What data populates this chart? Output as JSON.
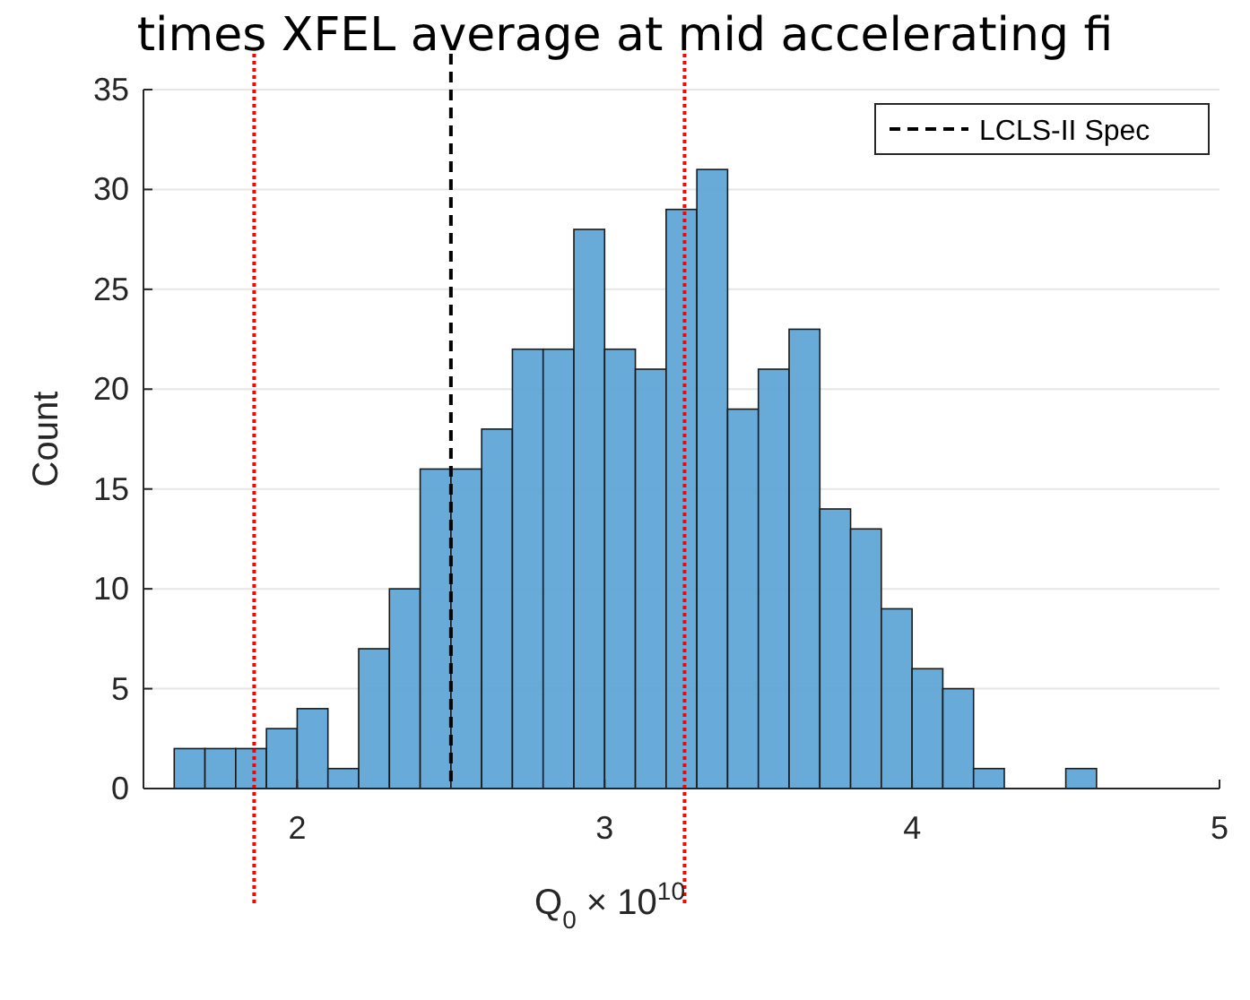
{
  "chart_data": {
    "type": "histogram",
    "title": "times XFEL average at mid accelerating fi",
    "xlabel": "Q$_{0}$ × 10$^{10}$",
    "ylabel": "Count",
    "bins": [
      1.6,
      1.7,
      1.8,
      1.9,
      2.0,
      2.1,
      2.2,
      2.3,
      2.4,
      2.5,
      2.6,
      2.7,
      2.8,
      2.9,
      3.0,
      3.1,
      3.2,
      3.3,
      3.4,
      3.5,
      3.6,
      3.7,
      3.8,
      3.9,
      4.0,
      4.1,
      4.2,
      4.3,
      4.4,
      4.5,
      4.6
    ],
    "values": [
      2,
      2,
      2,
      3,
      4,
      1,
      7,
      10,
      16,
      16,
      18,
      22,
      22,
      28,
      22,
      21,
      29,
      31,
      19,
      21,
      23,
      14,
      13,
      9,
      6,
      5,
      1,
      0,
      0,
      1
    ],
    "color": "#61a6d6",
    "xlim": [
      1.5,
      5
    ],
    "ylim": [
      0,
      35
    ],
    "xticks": [
      2,
      3,
      4,
      5
    ],
    "yticks": [
      0,
      5,
      10,
      15,
      20,
      25,
      30,
      35
    ],
    "grid": "y",
    "legend": "top right",
    "ref_lines": [
      {
        "axis": "x",
        "value": 2.5,
        "label": "LCLS-II Spec",
        "color": "#000000",
        "line_style": "dashed"
      },
      {
        "axis": "x",
        "value": 1.86,
        "color": "#ff0000",
        "line_style": "dotted"
      },
      {
        "axis": "x",
        "value": 3.26,
        "color": "#ff0000",
        "line_style": "dotted"
      }
    ]
  }
}
